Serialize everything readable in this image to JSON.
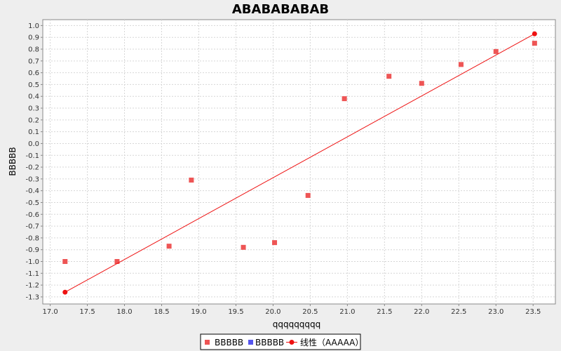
{
  "chart_data": {
    "type": "scatter",
    "title": "ABABABABAB",
    "xlabel": "qqqqqqqqq",
    "ylabel": "BBBBB",
    "xlim": [
      16.9,
      23.8
    ],
    "ylim": [
      -1.36,
      1.05
    ],
    "xticks": [
      17.0,
      17.5,
      18.0,
      18.5,
      19.0,
      19.5,
      20.0,
      20.5,
      21.0,
      21.5,
      22.0,
      22.5,
      23.0,
      23.5
    ],
    "yticks": [
      -1.3,
      -1.2,
      -1.1,
      -1.0,
      -0.9,
      -0.8,
      -0.7,
      -0.6,
      -0.5,
      -0.4,
      -0.3,
      -0.2,
      -0.1,
      0.0,
      0.1,
      0.2,
      0.3,
      0.4,
      0.5,
      0.6,
      0.7,
      0.8,
      0.9,
      1.0
    ],
    "grid": true,
    "legend_position": "bottom",
    "series": [
      {
        "name": "BBBBB",
        "kind": "scatter",
        "marker": "square",
        "color": "#ee5555",
        "points": [
          [
            17.2,
            -1.0
          ],
          [
            17.9,
            -1.0
          ],
          [
            18.6,
            -0.87
          ],
          [
            18.9,
            -0.31
          ],
          [
            19.6,
            -0.88
          ],
          [
            20.02,
            -0.84
          ],
          [
            20.47,
            -0.44
          ],
          [
            20.96,
            0.38
          ],
          [
            21.56,
            0.57
          ],
          [
            22.0,
            0.51
          ],
          [
            22.53,
            0.67
          ],
          [
            23.0,
            0.78
          ],
          [
            23.52,
            0.85
          ]
        ]
      },
      {
        "name": "BBBBB",
        "kind": "scatter",
        "marker": "square",
        "color": "#5555ee",
        "points": []
      },
      {
        "name": "线性（AAAAA）",
        "kind": "line",
        "marker": "circle",
        "color": "#ee1111",
        "points": [
          [
            17.2,
            -1.26
          ],
          [
            23.52,
            0.93
          ]
        ]
      }
    ]
  }
}
